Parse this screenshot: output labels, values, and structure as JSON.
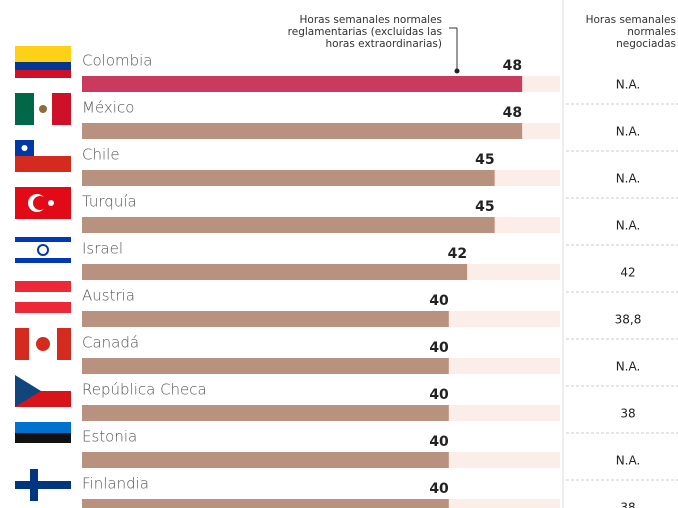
{
  "chart_data": {
    "type": "bar",
    "annotation": [
      "Horas semanales normales",
      "reglamentarias (excluidas las",
      "horas extraordinarias)"
    ],
    "categories": [
      "Colombia",
      "México",
      "Chile",
      "Turquía",
      "Israel",
      "Austria",
      "Canadá",
      "República Checa",
      "Estonia",
      "Finlandia"
    ],
    "values": [
      48,
      48,
      45,
      45,
      42,
      40,
      40,
      40,
      40,
      40
    ],
    "colors": [
      "#c93a5c",
      "#b8927f",
      "#b8927f",
      "#b8927f",
      "#b8927f",
      "#b8927f",
      "#b8927f",
      "#b8927f",
      "#b8927f",
      "#b8927f"
    ],
    "negotiated": {
      "title": [
        "Horas semanales",
        "normales",
        "negociadas"
      ],
      "values": [
        null,
        null,
        null,
        null,
        42,
        38.8,
        null,
        38,
        null,
        38
      ],
      "value_labels": [
        "N.A.",
        "N.A.",
        "N.A.",
        "N.A.",
        "42",
        "38,8",
        "N.A.",
        "38",
        "N.A.",
        "38"
      ]
    }
  }
}
